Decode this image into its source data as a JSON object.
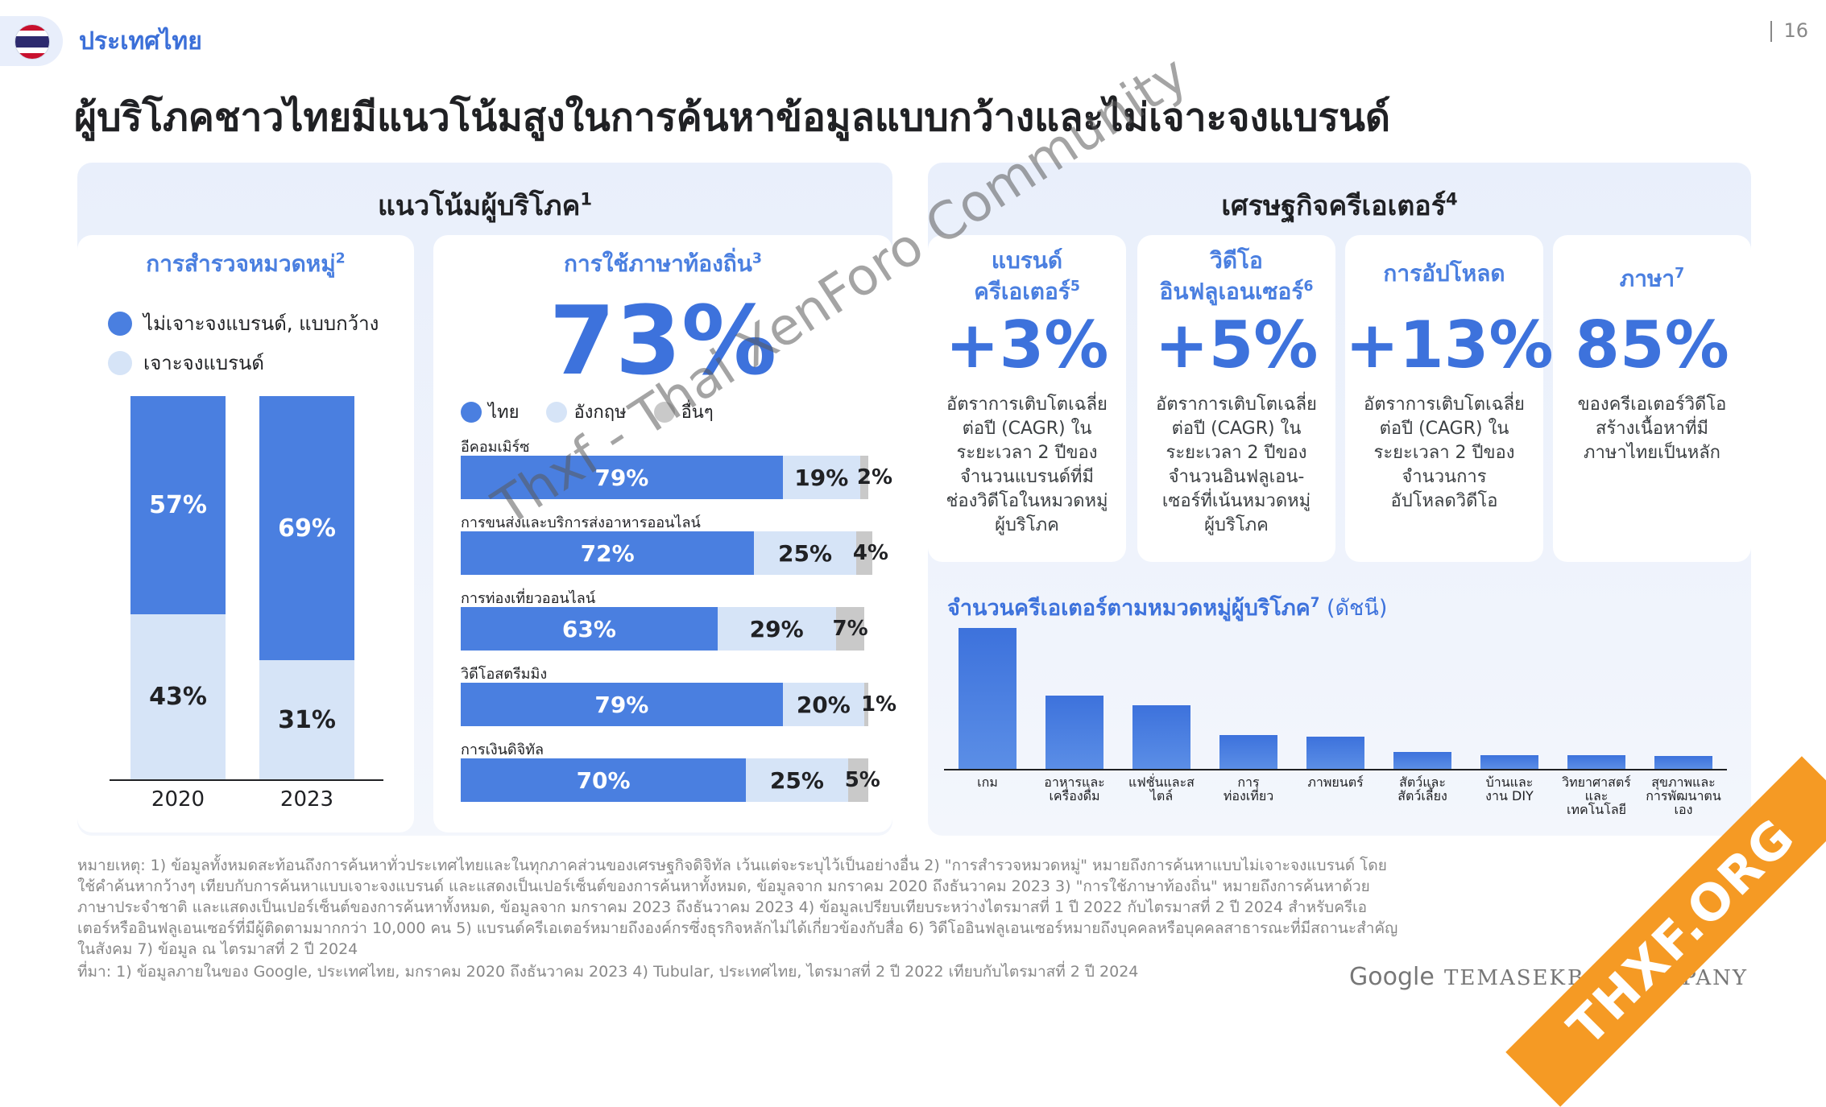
{
  "header": {
    "country": "ประเทศไทย",
    "page_number": "16"
  },
  "headline": "ผู้บริโภคชาวไทยมีแนวโน้มสูงในการค้นหาข้อมูลแบบกว้างและไม่เจาะจงแบรนด์",
  "left_panel": {
    "title": "แนวโน้มผู้บริโภค",
    "sup": "1"
  },
  "category_card": {
    "title": "การสำรวจหมวดหมู่",
    "sup": "2",
    "legend": [
      {
        "label": "ไม่เจาะจงแบรนด์, แบบกว้าง",
        "color": "#4a7fe0"
      },
      {
        "label": "เจาะจงแบรนด์",
        "color": "#d6e4f7"
      }
    ]
  },
  "local_card": {
    "title": "การใช้ภาษาท้องถิ่น",
    "sup": "3",
    "big_value": "73%",
    "legend": [
      {
        "label": "ไทย",
        "color": "#4a7fe0"
      },
      {
        "label": "อังกฤษ",
        "color": "#d6e4f7"
      },
      {
        "label": "อื่นๆ",
        "color": "#c9c9c9"
      }
    ]
  },
  "right_panel": {
    "title": "เศรษฐกิจครีเอเตอร์",
    "sup": "4"
  },
  "stats": [
    {
      "title": "แบรนด์\nครีเอเตอร์",
      "sup": "5",
      "value": "+3%",
      "text": "อัตราการเติบโตเฉลี่ย\nต่อปี (CAGR) ใน\nระยะเวลา 2 ปีของ\nจำนวนแบรนด์ที่มี\nช่องวิดีโอในหมวดหมู่\nผู้บริโภค"
    },
    {
      "title": "วิดีโอ\nอินฟลูเอนเซอร์",
      "sup": "6",
      "value": "+5%",
      "text": "อัตราการเติบโตเฉลี่ย\nต่อปี (CAGR) ใน\nระยะเวลา 2 ปีของ\nจำนวนอินฟลูเอน-\nเซอร์ที่เน้นหมวดหมู่\nผู้บริโภค"
    },
    {
      "title": "การอัปโหลด",
      "sup": "",
      "value": "+13%",
      "text": "อัตราการเติบโตเฉลี่ย\nต่อปี (CAGR) ใน\nระยะเวลา 2 ปีของ\nจำนวนการ\nอัปโหลดวิดีโอ"
    },
    {
      "title": "ภาษา",
      "sup": "7",
      "value": "85%",
      "text": "ของครีเอเตอร์วิดีโอ\nสร้างเนื้อหาที่มี\nภาษาไทยเป็นหลัก"
    }
  ],
  "creator_chart": {
    "title": "จำนวนครีเอเตอร์ตามหมวดหมู่ผู้บริโภค",
    "sup": "7",
    "suffix": " (ดัชนี)"
  },
  "chart_data": [
    {
      "type": "bar",
      "stacked": true,
      "categories": [
        "2020",
        "2023"
      ],
      "series": [
        {
          "name": "ไม่เจาะจงแบรนด์, แบบกว้าง",
          "values": [
            57,
            69
          ],
          "labels": [
            "57%",
            "69%"
          ],
          "color": "#4a7fe0"
        },
        {
          "name": "เจาะจงแบรนด์",
          "values": [
            43,
            31
          ],
          "labels": [
            "43%",
            "31%"
          ],
          "color": "#d6e4f7"
        }
      ],
      "ylim": [
        0,
        100
      ]
    },
    {
      "type": "bar",
      "orientation": "horizontal",
      "stacked": true,
      "categories": [
        "อีคอมเมิร์ซ",
        "การขนส่งและบริการส่งอาหารออนไลน์",
        "การท่องเที่ยวออนไลน์",
        "วิดีโอสตรีมมิง",
        "การเงินดิจิทัล"
      ],
      "series": [
        {
          "name": "ไทย",
          "values": [
            79,
            72,
            63,
            79,
            70
          ],
          "labels": [
            "79%",
            "72%",
            "63%",
            "79%",
            "70%"
          ],
          "color": "#4a7fe0"
        },
        {
          "name": "อังกฤษ",
          "values": [
            19,
            25,
            29,
            20,
            25
          ],
          "labels": [
            "19%",
            "25%",
            "29%",
            "20%",
            "25%"
          ],
          "color": "#d6e4f7"
        },
        {
          "name": "อื่นๆ",
          "values": [
            2,
            4,
            7,
            1,
            5
          ],
          "labels": [
            "2%",
            "4%",
            "7%",
            "1%",
            "5%"
          ],
          "color": "#c9c9c9"
        }
      ],
      "xlim": [
        0,
        100
      ]
    },
    {
      "type": "bar",
      "categories": [
        "เกม",
        "อาหารและ\nเครื่องดื่ม",
        "แฟชั่นและส\nไตล์",
        "การ\nท่องเที่ยว",
        "ภาพยนตร์",
        "สัตว์และ\nสัตว์เลี้ยง",
        "บ้านและ\nงาน DIY",
        "วิทยาศาสตร์\nและ\nเทคโนโลยี",
        "สุขภาพและ\nการพัฒนาตน\nเอง"
      ],
      "values": [
        100,
        52,
        45,
        24,
        23,
        12,
        10,
        10,
        9
      ],
      "color": "#4a7fe0",
      "ylim": [
        0,
        100
      ]
    }
  ],
  "notes": "หมายเหตุ: 1) ข้อมูลทั้งหมดสะท้อนถึงการค้นหาทั่วประเทศไทยและในทุกภาคส่วนของเศรษฐกิจดิจิทัล เว้นแต่จะระบุไว้เป็นอย่างอื่น 2) \"การสำรวจหมวดหมู่\" หมายถึงการค้นหาแบบไม่เจาะจงแบรนด์ โดยใช้คำค้นหากว้างๆ เทียบกับการค้นหาแบบเจาะจงแบรนด์ และแสดงเป็นเปอร์เซ็นต์ของการค้นหาทั้งหมด, ข้อมูลจาก มกราคม 2020 ถึงธันวาคม 2023 3) \"การใช้ภาษาท้องถิ่น\" หมายถึงการค้นหาด้วยภาษาประจำชาติ และแสดงเป็นเปอร์เซ็นต์ของการค้นหาทั้งหมด, ข้อมูลจาก มกราคม 2023 ถึงธันวาคม 2023 4) ข้อมูลเปรียบเทียบระหว่างไตรมาสที่ 1 ปี 2022 กับไตรมาสที่ 2 ปี 2024 สำหรับครีเอเตอร์หรืออินฟลูเอนเซอร์ที่มีผู้ติดตามมากกว่า 10,000 คน 5) แบรนด์ครีเอเตอร์หมายถึงองค์กรซึ่งธุรกิจหลักไม่ได้เกี่ยวข้องกับสื่อ 6) วิดีโออินฟลูเอนเซอร์หมายถึงบุคคลหรือบุคคลสาธารณะที่มีสถานะสำคัญในสังคม 7) ข้อมูล ณ ไตรมาสที่ 2 ปี 2024",
  "source": "ที่มา: 1) ข้อมูลภายในของ Google, ประเทศไทย, มกราคม 2020 ถึงธันวาคม 2023 4) Tubular, ประเทศไทย, ไตรมาสที่ 2 ปี 2022 เทียบกับไตรมาสที่ 2 ปี 2024",
  "logos": {
    "google": "Google",
    "temasek": "TEMASEK",
    "bain": "BA",
    "company": ".PANY"
  },
  "watermark": "Thxf - Thai XenForo Community",
  "ribbon": "THXF.ORG"
}
